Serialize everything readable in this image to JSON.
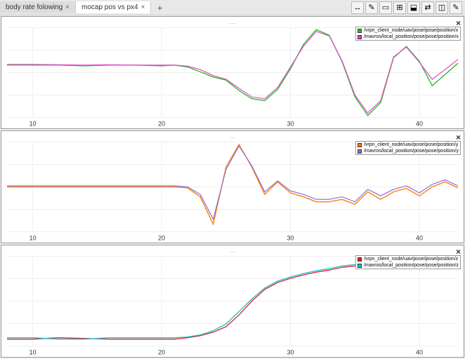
{
  "tabs": [
    {
      "label": "body rate folowing",
      "active": false
    },
    {
      "label": "mocap pos vs px4",
      "active": true
    }
  ],
  "toolbar_icons": [
    "↔",
    "✎",
    "▭",
    "⊞",
    "⬓",
    "⇄",
    "◫",
    "✎"
  ],
  "axis": {
    "xlim": [
      8,
      43
    ],
    "xticks": [
      10,
      20,
      30,
      40
    ],
    "grid_color": "#eeeeee",
    "background": "#ffffff",
    "tick_fontsize": 9
  },
  "colors": {
    "green": "#2dbd2d",
    "magenta": "#e648c8",
    "orange": "#ff7f0e",
    "purple": "#8a6fd6",
    "red": "#d62728",
    "cyan": "#17becf"
  },
  "panels": [
    {
      "subtitle": "...",
      "ylim": [
        -1.4,
        1.0
      ],
      "legend": [
        {
          "label": "/vrpn_client_node/uav/pose/pose/position/x",
          "color": "#2dbd2d"
        },
        {
          "label": "/mavros/local_position/pose/pose/position/x",
          "color": "#e648c8"
        }
      ],
      "series": [
        {
          "color": "#2dbd2d",
          "width": 1.4,
          "data": [
            [
              8,
              0.0
            ],
            [
              10,
              0.0
            ],
            [
              12,
              0.0
            ],
            [
              14,
              -0.02
            ],
            [
              16,
              0.0
            ],
            [
              18,
              0.0
            ],
            [
              20,
              -0.02
            ],
            [
              21,
              0.0
            ],
            [
              22,
              -0.05
            ],
            [
              23,
              -0.18
            ],
            [
              24,
              -0.32
            ],
            [
              25,
              -0.4
            ],
            [
              26,
              -0.68
            ],
            [
              27,
              -0.9
            ],
            [
              28,
              -0.95
            ],
            [
              29,
              -0.65
            ],
            [
              30,
              -0.1
            ],
            [
              31,
              0.55
            ],
            [
              32,
              0.95
            ],
            [
              33,
              0.8
            ],
            [
              34,
              0.1
            ],
            [
              35,
              -0.85
            ],
            [
              36,
              -1.35
            ],
            [
              37,
              -1.0
            ],
            [
              38,
              0.2
            ],
            [
              39,
              0.5
            ],
            [
              40,
              0.1
            ],
            [
              41,
              -0.55
            ],
            [
              42,
              -0.25
            ],
            [
              43,
              0.05
            ]
          ]
        },
        {
          "color": "#e648c8",
          "width": 1.2,
          "data": [
            [
              8,
              0.02
            ],
            [
              10,
              0.02
            ],
            [
              12,
              0.01
            ],
            [
              14,
              0.0
            ],
            [
              16,
              0.01
            ],
            [
              18,
              0.0
            ],
            [
              20,
              0.0
            ],
            [
              21,
              0.0
            ],
            [
              22,
              -0.03
            ],
            [
              23,
              -0.12
            ],
            [
              24,
              -0.28
            ],
            [
              25,
              -0.38
            ],
            [
              26,
              -0.62
            ],
            [
              27,
              -0.85
            ],
            [
              28,
              -0.9
            ],
            [
              29,
              -0.6
            ],
            [
              30,
              -0.05
            ],
            [
              31,
              0.5
            ],
            [
              32,
              0.9
            ],
            [
              33,
              0.78
            ],
            [
              34,
              0.12
            ],
            [
              35,
              -0.8
            ],
            [
              36,
              -1.28
            ],
            [
              37,
              -0.95
            ],
            [
              38,
              0.22
            ],
            [
              39,
              0.48
            ],
            [
              40,
              0.08
            ],
            [
              41,
              -0.38
            ],
            [
              42,
              -0.12
            ],
            [
              43,
              0.15
            ]
          ]
        }
      ]
    },
    {
      "subtitle": "...",
      "ylim": [
        -0.9,
        0.9
      ],
      "legend": [
        {
          "label": "/vrpn_client_node/uav/pose/pose/position/y",
          "color": "#ff7f0e"
        },
        {
          "label": "/mavros/local_position/pose/pose/position/y",
          "color": "#8a6fd6"
        }
      ],
      "series": [
        {
          "color": "#ff7f0e",
          "width": 1.4,
          "data": [
            [
              8,
              0.0
            ],
            [
              10,
              0.0
            ],
            [
              12,
              0.0
            ],
            [
              14,
              0.0
            ],
            [
              16,
              0.0
            ],
            [
              18,
              0.0
            ],
            [
              20,
              0.0
            ],
            [
              21,
              0.0
            ],
            [
              22,
              -0.02
            ],
            [
              23,
              -0.2
            ],
            [
              24,
              -0.75
            ],
            [
              25,
              0.4
            ],
            [
              26,
              0.85
            ],
            [
              27,
              0.4
            ],
            [
              28,
              -0.15
            ],
            [
              29,
              0.1
            ],
            [
              30,
              -0.12
            ],
            [
              31,
              -0.2
            ],
            [
              32,
              -0.3
            ],
            [
              33,
              -0.3
            ],
            [
              34,
              -0.25
            ],
            [
              35,
              -0.35
            ],
            [
              36,
              -0.1
            ],
            [
              37,
              -0.25
            ],
            [
              38,
              -0.1
            ],
            [
              39,
              -0.03
            ],
            [
              40,
              -0.18
            ],
            [
              41,
              0.0
            ],
            [
              42,
              0.1
            ],
            [
              43,
              -0.02
            ]
          ]
        },
        {
          "color": "#8a6fd6",
          "width": 1.2,
          "data": [
            [
              8,
              0.02
            ],
            [
              10,
              0.02
            ],
            [
              12,
              0.02
            ],
            [
              14,
              0.02
            ],
            [
              16,
              0.02
            ],
            [
              18,
              0.02
            ],
            [
              20,
              0.02
            ],
            [
              21,
              0.02
            ],
            [
              22,
              0.0
            ],
            [
              23,
              -0.15
            ],
            [
              24,
              -0.65
            ],
            [
              25,
              0.35
            ],
            [
              26,
              0.82
            ],
            [
              27,
              0.42
            ],
            [
              28,
              -0.1
            ],
            [
              29,
              0.12
            ],
            [
              30,
              -0.08
            ],
            [
              31,
              -0.15
            ],
            [
              32,
              -0.25
            ],
            [
              33,
              -0.25
            ],
            [
              34,
              -0.2
            ],
            [
              35,
              -0.3
            ],
            [
              36,
              -0.05
            ],
            [
              37,
              -0.18
            ],
            [
              38,
              -0.05
            ],
            [
              39,
              0.02
            ],
            [
              40,
              -0.12
            ],
            [
              41,
              0.05
            ],
            [
              42,
              0.14
            ],
            [
              43,
              0.02
            ]
          ]
        }
      ]
    },
    {
      "subtitle": "...",
      "ylim": [
        -0.1,
        1.2
      ],
      "legend": [
        {
          "label": "/vrpn_client_node/uav/pose/pose/position/z",
          "color": "#d62728"
        },
        {
          "label": "/mavros/local_position/pose/pose/position/z",
          "color": "#17becf"
        }
      ],
      "series": [
        {
          "color": "#d62728",
          "width": 1.3,
          "data": [
            [
              8,
              0.0
            ],
            [
              10,
              0.0
            ],
            [
              12,
              0.02
            ],
            [
              14,
              0.01
            ],
            [
              16,
              0.0
            ],
            [
              18,
              0.0
            ],
            [
              20,
              0.0
            ],
            [
              21,
              0.0
            ],
            [
              22,
              0.02
            ],
            [
              23,
              0.05
            ],
            [
              24,
              0.1
            ],
            [
              25,
              0.18
            ],
            [
              26,
              0.35
            ],
            [
              27,
              0.55
            ],
            [
              28,
              0.72
            ],
            [
              29,
              0.82
            ],
            [
              30,
              0.88
            ],
            [
              31,
              0.93
            ],
            [
              32,
              0.97
            ],
            [
              33,
              1.0
            ],
            [
              34,
              1.04
            ],
            [
              35,
              1.06
            ],
            [
              36,
              1.07
            ],
            [
              37,
              1.07
            ],
            [
              38,
              1.06
            ],
            [
              39,
              1.05
            ],
            [
              40,
              1.05
            ],
            [
              41,
              1.05
            ],
            [
              42,
              1.05
            ],
            [
              43,
              1.05
            ]
          ]
        },
        {
          "color": "#17becf",
          "width": 1.3,
          "data": [
            [
              8,
              0.02
            ],
            [
              10,
              0.02
            ],
            [
              12,
              0.0
            ],
            [
              14,
              0.0
            ],
            [
              16,
              0.02
            ],
            [
              18,
              0.02
            ],
            [
              20,
              0.02
            ],
            [
              21,
              0.02
            ],
            [
              22,
              0.03
            ],
            [
              23,
              0.06
            ],
            [
              24,
              0.12
            ],
            [
              25,
              0.22
            ],
            [
              26,
              0.4
            ],
            [
              27,
              0.58
            ],
            [
              28,
              0.74
            ],
            [
              29,
              0.84
            ],
            [
              30,
              0.9
            ],
            [
              31,
              0.95
            ],
            [
              32,
              0.99
            ],
            [
              33,
              1.02
            ],
            [
              34,
              1.06
            ],
            [
              35,
              1.08
            ],
            [
              36,
              1.09
            ],
            [
              37,
              1.08
            ],
            [
              38,
              1.07
            ],
            [
              39,
              1.06
            ],
            [
              40,
              1.06
            ],
            [
              41,
              1.06
            ],
            [
              42,
              1.06
            ],
            [
              43,
              1.06
            ]
          ]
        }
      ]
    }
  ]
}
